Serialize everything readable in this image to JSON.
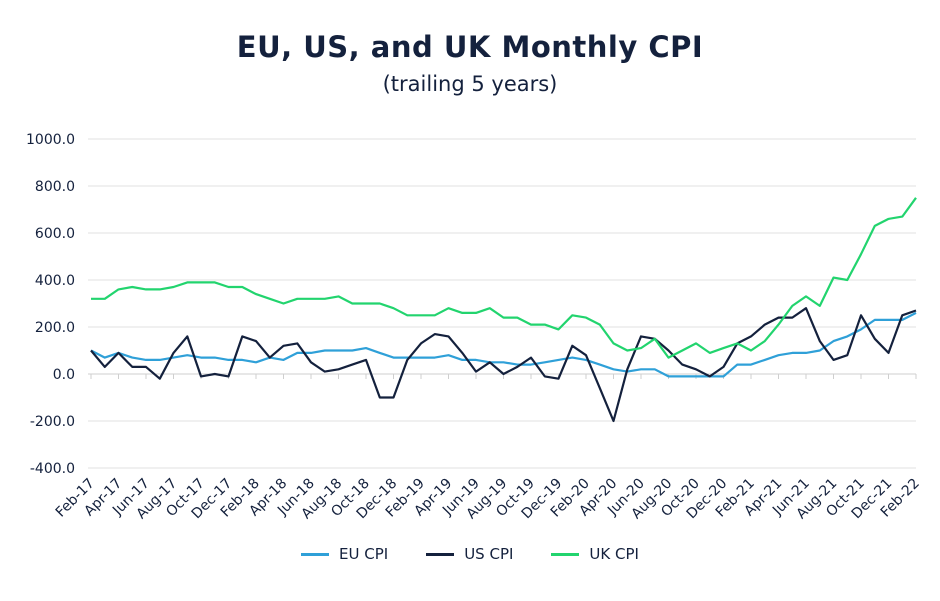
{
  "chart_data": {
    "type": "line",
    "title": "EU, US, and UK Monthly CPI",
    "subtitle": "(trailing 5 years)",
    "xlabel": "",
    "ylabel": "",
    "ylim": [
      -400,
      1000
    ],
    "yticks": [
      "1000.0",
      "800.0",
      "600.0",
      "400.0",
      "200.0",
      "0.0",
      "-200.0",
      "-400.0"
    ],
    "ytick_values": [
      1000,
      800,
      600,
      400,
      200,
      0,
      -200,
      -400
    ],
    "grid": true,
    "legend": "bottom",
    "x": [
      "Feb-17",
      "Mar-17",
      "Apr-17",
      "May-17",
      "Jun-17",
      "Jul-17",
      "Aug-17",
      "Sep-17",
      "Oct-17",
      "Nov-17",
      "Dec-17",
      "Jan-18",
      "Feb-18",
      "Mar-18",
      "Apr-18",
      "May-18",
      "Jun-18",
      "Jul-18",
      "Aug-18",
      "Sep-18",
      "Oct-18",
      "Nov-18",
      "Dec-18",
      "Jan-19",
      "Feb-19",
      "Mar-19",
      "Apr-19",
      "May-19",
      "Jun-19",
      "Jul-19",
      "Aug-19",
      "Sep-19",
      "Oct-19",
      "Nov-19",
      "Dec-19",
      "Jan-20",
      "Feb-20",
      "Mar-20",
      "Apr-20",
      "May-20",
      "Jun-20",
      "Jul-20",
      "Aug-20",
      "Sep-20",
      "Oct-20",
      "Nov-20",
      "Dec-20",
      "Jan-21",
      "Feb-21",
      "Mar-21",
      "Apr-21",
      "May-21",
      "Jun-21",
      "Jul-21",
      "Aug-21",
      "Sep-21",
      "Oct-21",
      "Nov-21",
      "Dec-21",
      "Jan-22",
      "Feb-22"
    ],
    "xtick_labels": [
      "Feb-17",
      "Apr-17",
      "Jun-17",
      "Aug-17",
      "Oct-17",
      "Dec-17",
      "Feb-18",
      "Apr-18",
      "Jun-18",
      "Aug-18",
      "Oct-18",
      "Dec-18",
      "Feb-19",
      "Apr-19",
      "Jun-19",
      "Aug-19",
      "Oct-19",
      "Dec-19",
      "Feb-20",
      "Apr-20",
      "Jun-20",
      "Aug-20",
      "Oct-20",
      "Dec-20",
      "Feb-21",
      "Apr-21",
      "Jun-21",
      "Aug-21",
      "Oct-21",
      "Dec-21",
      "Feb-22"
    ],
    "series": [
      {
        "name": "EU CPI",
        "color": "#2fa0d8",
        "values": [
          100,
          70,
          90,
          70,
          60,
          60,
          70,
          80,
          70,
          70,
          60,
          60,
          50,
          70,
          60,
          90,
          90,
          100,
          100,
          100,
          110,
          90,
          70,
          70,
          70,
          70,
          80,
          60,
          60,
          50,
          50,
          40,
          40,
          50,
          60,
          70,
          60,
          40,
          20,
          10,
          20,
          20,
          -10,
          -10,
          -10,
          -10,
          -10,
          40,
          40,
          60,
          80,
          90,
          90,
          100,
          140,
          160,
          190,
          230,
          230,
          230,
          260
        ]
      },
      {
        "name": "US CPI",
        "color": "#14213d",
        "values": [
          100,
          30,
          90,
          30,
          30,
          -20,
          90,
          160,
          -10,
          0,
          -10,
          160,
          140,
          70,
          120,
          130,
          50,
          10,
          20,
          40,
          60,
          -100,
          -100,
          60,
          130,
          170,
          160,
          90,
          10,
          50,
          0,
          30,
          70,
          -10,
          -20,
          120,
          80,
          -60,
          -200,
          20,
          160,
          150,
          100,
          40,
          20,
          -10,
          30,
          130,
          160,
          210,
          240,
          240,
          280,
          140,
          60,
          80,
          250,
          150,
          90,
          250,
          270
        ]
      },
      {
        "name": "UK CPI",
        "color": "#22d46e",
        "values": [
          320,
          320,
          360,
          370,
          360,
          360,
          370,
          390,
          390,
          390,
          370,
          370,
          340,
          320,
          300,
          320,
          320,
          320,
          330,
          300,
          300,
          300,
          280,
          250,
          250,
          250,
          280,
          260,
          260,
          280,
          240,
          240,
          210,
          210,
          190,
          250,
          240,
          210,
          130,
          100,
          110,
          150,
          70,
          100,
          130,
          90,
          110,
          130,
          100,
          140,
          210,
          290,
          330,
          290,
          410,
          400,
          510,
          630,
          660,
          670,
          750
        ]
      }
    ]
  }
}
